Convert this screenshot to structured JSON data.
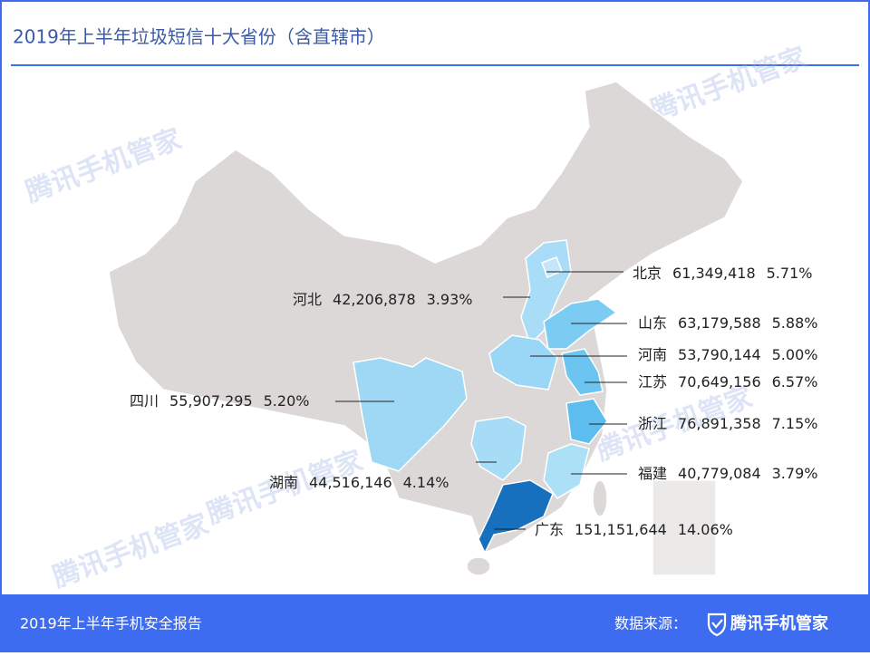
{
  "header": {
    "title": "2019年上半年垃圾短信十大省份（含直辖市）"
  },
  "watermark": "腾讯手机管家",
  "map": {
    "provinces": [
      {
        "name": "北京",
        "count": 61349418,
        "count_label": "61,349,418",
        "share": 5.71,
        "share_label": "5.71%",
        "color": "#c4e6f8"
      },
      {
        "name": "河北",
        "count": 42206878,
        "count_label": "42,206,878",
        "share": 3.93,
        "share_label": "3.93%",
        "color": "#a9dcf6"
      },
      {
        "name": "山东",
        "count": 63179588,
        "count_label": "63,179,588",
        "share": 5.88,
        "share_label": "5.88%",
        "color": "#7ccbf2"
      },
      {
        "name": "河南",
        "count": 53790144,
        "count_label": "53,790,144",
        "share": 5.0,
        "share_label": "5.00%",
        "color": "#9ad6f5"
      },
      {
        "name": "江苏",
        "count": 70649156,
        "count_label": "70,649,156",
        "share": 6.57,
        "share_label": "6.57%",
        "color": "#6cc4f0"
      },
      {
        "name": "四川",
        "count": 55907295,
        "count_label": "55,907,295",
        "share": 5.2,
        "share_label": "5.20%",
        "color": "#9fd8f5"
      },
      {
        "name": "浙江",
        "count": 76891358,
        "count_label": "76,891,358",
        "share": 7.15,
        "share_label": "7.15%",
        "color": "#5cbdee"
      },
      {
        "name": "福建",
        "count": 40779084,
        "count_label": "40,779,084",
        "share": 3.79,
        "share_label": "3.79%",
        "color": "#ace0f7"
      },
      {
        "name": "湖南",
        "count": 44516146,
        "count_label": "44,516,146",
        "share": 4.14,
        "share_label": "4.14%",
        "color": "#a6dcf6"
      },
      {
        "name": "广东",
        "count": 151151644,
        "count_label": "151,151,644",
        "share": 14.06,
        "share_label": "14.06%",
        "color": "#1670bd"
      }
    ]
  },
  "footer": {
    "report": "2019年上半年手机安全报告",
    "source_label": "数据来源：",
    "brand": "腾讯手机管家"
  }
}
